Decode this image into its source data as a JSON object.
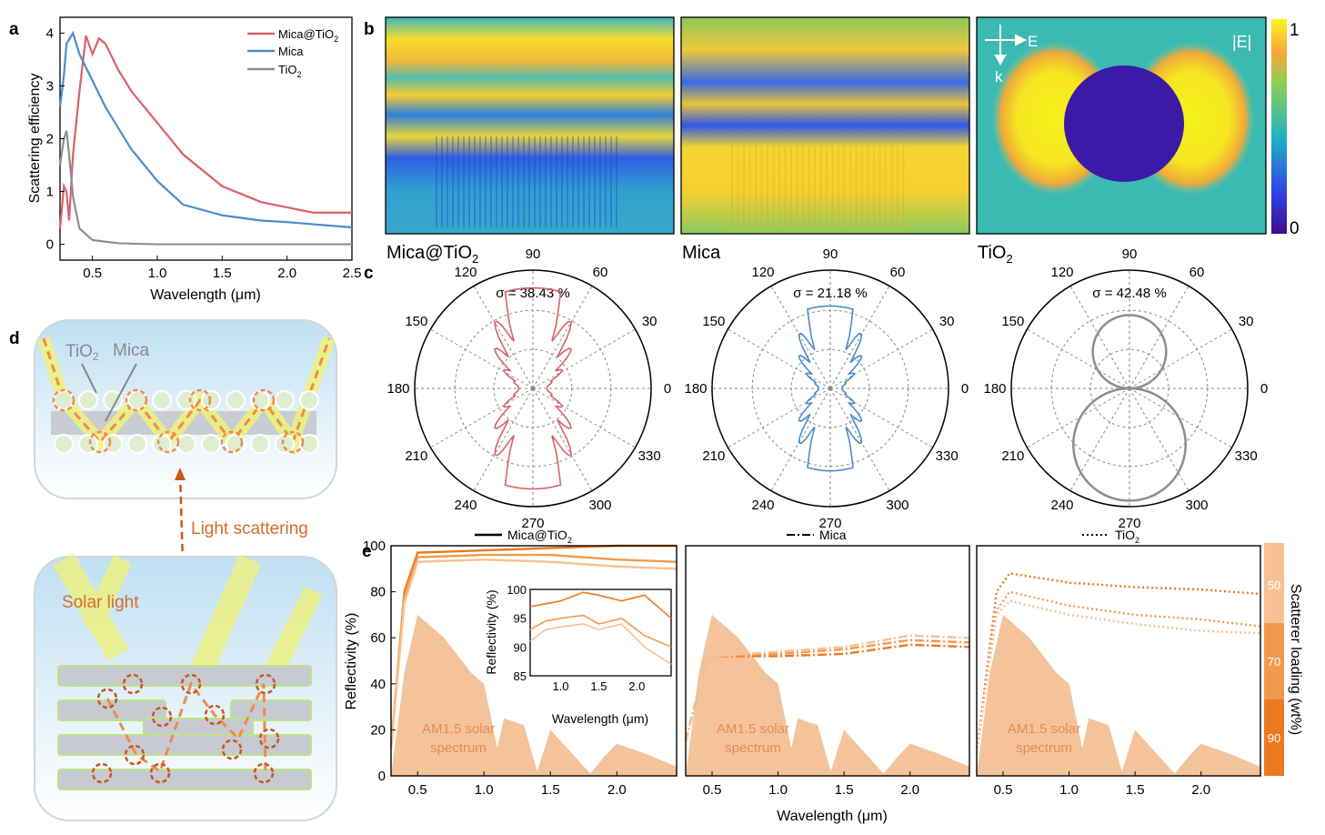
{
  "panels": {
    "a": "a",
    "b": "b",
    "c": "c",
    "d": "d",
    "e": "e"
  },
  "panel_a": {
    "ylabel": "Scattering efficiency",
    "xlabel": "Wavelength (μm)",
    "xticks": [
      "0.5",
      "1.0",
      "1.5",
      "2.0",
      "2.5"
    ],
    "yticks": [
      "0",
      "1",
      "2",
      "3",
      "4"
    ],
    "legend": [
      {
        "name": "Mica@TiO2",
        "color": "#d9606a"
      },
      {
        "name": "Mica",
        "color": "#4a8ccc"
      },
      {
        "name": "TiO2",
        "color": "#8a8f92"
      }
    ]
  },
  "panel_b": {
    "labels": [
      "Mica@TiO2",
      "Mica",
      "TiO2"
    ],
    "field_label": "|E|",
    "e_label": "E",
    "k_label": "k",
    "colorbar_max": "1",
    "colorbar_min": "0"
  },
  "panel_c": {
    "angles": [
      "90",
      "60",
      "30",
      "0",
      "330",
      "300",
      "270",
      "240",
      "210",
      "180",
      "150",
      "120"
    ],
    "sigmas": [
      "σ = 38.43 %",
      "σ = 21.18 %",
      "σ = 42.48 %"
    ],
    "colors": [
      "#d9606a",
      "#4a8ccc",
      "#8a8f92"
    ]
  },
  "panel_d": {
    "tio2": "TiO2",
    "mica": "Mica",
    "scattering": "Light scattering",
    "solar": "Solar light"
  },
  "panel_e": {
    "ylabel": "Reflectivity (%)",
    "xlabel": "Wavelength (μm)",
    "xticks": [
      "0.5",
      "1.0",
      "1.5",
      "2.0"
    ],
    "yticks": [
      "0",
      "20",
      "40",
      "60",
      "80",
      "100"
    ],
    "styles": [
      "Mica@TiO2",
      "Mica",
      "TiO2"
    ],
    "am_label_1": "AM1.5 solar",
    "am_label_2": "spectrum",
    "inset": {
      "ylabel": "Reflectivity (%)",
      "xlabel": "Wavelength (μm)",
      "yticks": [
        "85",
        "90",
        "95",
        "100"
      ],
      "xticks": [
        "1.0",
        "1.5",
        "2.0"
      ]
    },
    "loading_label": "Scatterer loading (wt%)",
    "loadings": [
      "50",
      "70",
      "90"
    ],
    "loading_colors": [
      "#f7c194",
      "#f19a4e",
      "#ea7a20"
    ]
  },
  "chart_data": [
    {
      "type": "line",
      "title": "a",
      "xlabel": "Wavelength (μm)",
      "ylabel": "Scattering efficiency",
      "xlim": [
        0.25,
        2.5
      ],
      "ylim": [
        -0.3,
        4.3
      ],
      "series": [
        {
          "name": "Mica@TiO2",
          "x": [
            0.25,
            0.28,
            0.3,
            0.32,
            0.35,
            0.4,
            0.45,
            0.5,
            0.55,
            0.6,
            0.7,
            0.8,
            1.0,
            1.2,
            1.5,
            1.8,
            2.0,
            2.2,
            2.5
          ],
          "y": [
            0.3,
            1.1,
            1.0,
            0.45,
            1.7,
            2.9,
            3.95,
            3.6,
            3.9,
            3.8,
            3.3,
            2.9,
            2.3,
            1.7,
            1.1,
            0.8,
            0.7,
            0.6,
            0.6
          ]
        },
        {
          "name": "Mica",
          "x": [
            0.25,
            0.28,
            0.3,
            0.35,
            0.4,
            0.5,
            0.6,
            0.8,
            1.0,
            1.2,
            1.5,
            1.8,
            2.0,
            2.5
          ],
          "y": [
            2.6,
            3.2,
            3.8,
            4.0,
            3.6,
            3.1,
            2.6,
            1.8,
            1.2,
            0.75,
            0.55,
            0.45,
            0.42,
            0.32
          ]
        },
        {
          "name": "TiO2",
          "x": [
            0.25,
            0.28,
            0.3,
            0.32,
            0.35,
            0.4,
            0.5,
            0.7,
            1.0,
            1.5,
            2.0,
            2.5
          ],
          "y": [
            1.5,
            2.0,
            2.15,
            1.7,
            0.9,
            0.3,
            0.08,
            0.02,
            0.0,
            0.0,
            0.0,
            0.0
          ]
        }
      ]
    },
    {
      "type": "area",
      "title": "e",
      "xlabel": "Wavelength (μm)",
      "ylabel": "Reflectivity (%)",
      "xlim": [
        0.3,
        2.45
      ],
      "ylim": [
        0,
        100
      ],
      "series": [
        {
          "name": "Mica@TiO2 90 wt%",
          "x": [
            0.3,
            0.4,
            0.5,
            1.0,
            1.5,
            2.0,
            2.45
          ],
          "y": [
            12,
            80,
            97,
            98,
            99,
            100,
            100
          ]
        },
        {
          "name": "Mica@TiO2 70 wt%",
          "x": [
            0.3,
            0.4,
            0.5,
            1.0,
            1.5,
            2.0,
            2.45
          ],
          "y": [
            12,
            78,
            95,
            96,
            96,
            94,
            93
          ]
        },
        {
          "name": "Mica@TiO2 50 wt%",
          "x": [
            0.3,
            0.4,
            0.5,
            1.0,
            1.5,
            2.0,
            2.45
          ],
          "y": [
            12,
            75,
            93,
            94,
            93,
            91,
            90
          ]
        },
        {
          "name": "Mica 90 wt%",
          "x": [
            0.3,
            0.45,
            0.5,
            1.0,
            1.5,
            2.0,
            2.45
          ],
          "y": [
            15,
            50,
            52,
            52,
            53,
            57,
            56
          ]
        },
        {
          "name": "Mica 70 wt%",
          "x": [
            0.3,
            0.45,
            0.5,
            1.0,
            1.5,
            2.0,
            2.45
          ],
          "y": [
            15,
            50,
            52,
            53,
            55,
            59,
            58
          ]
        },
        {
          "name": "Mica 50 wt%",
          "x": [
            0.3,
            0.45,
            0.5,
            1.0,
            1.5,
            2.0,
            2.45
          ],
          "y": [
            15,
            50,
            52,
            54,
            56,
            61,
            60
          ]
        },
        {
          "name": "TiO2 90 wt%",
          "x": [
            0.3,
            0.45,
            0.55,
            1.0,
            1.5,
            2.0,
            2.45
          ],
          "y": [
            10,
            80,
            88,
            84,
            82,
            81,
            79
          ]
        },
        {
          "name": "TiO2 70 wt%",
          "x": [
            0.3,
            0.45,
            0.55,
            1.0,
            1.5,
            2.0,
            2.45
          ],
          "y": [
            10,
            72,
            80,
            74,
            70,
            68,
            65
          ]
        },
        {
          "name": "TiO2 50 wt%",
          "x": [
            0.3,
            0.45,
            0.55,
            1.0,
            1.5,
            2.0,
            2.45
          ],
          "y": [
            10,
            70,
            76,
            70,
            66,
            63,
            62
          ]
        },
        {
          "name": "AM1.5 solar spectrum",
          "x": [
            0.3,
            0.4,
            0.5,
            0.7,
            0.9,
            1.0,
            1.1,
            1.15,
            1.3,
            1.4,
            1.5,
            1.8,
            1.9,
            2.0,
            2.2,
            2.45
          ],
          "y": [
            0,
            45,
            70,
            60,
            45,
            40,
            12,
            25,
            22,
            2,
            20,
            1,
            8,
            14,
            10,
            4
          ]
        }
      ]
    }
  ]
}
